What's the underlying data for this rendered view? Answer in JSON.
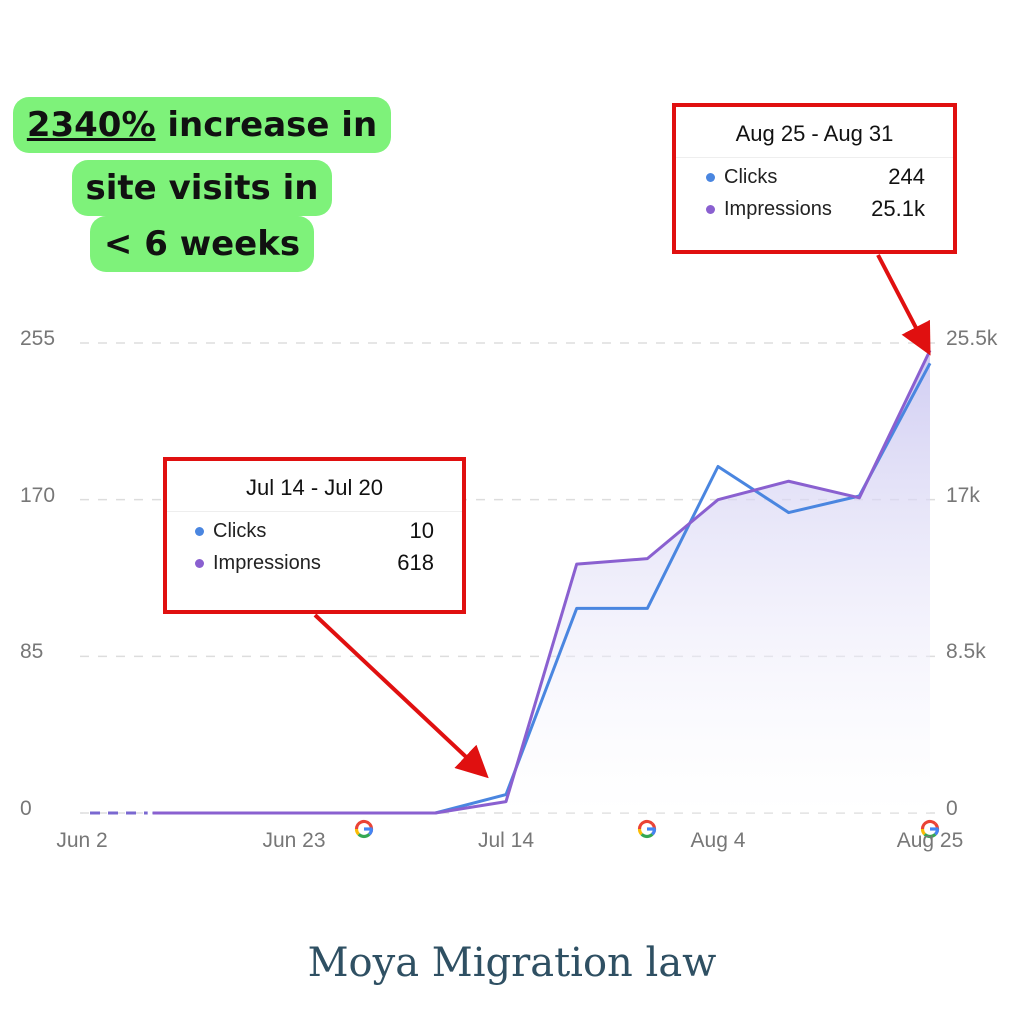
{
  "headline": {
    "highlight": "2340%",
    "line1_rest": " increase in",
    "line2": "site visits in",
    "line3": "< 6 weeks"
  },
  "callouts": [
    {
      "title": "Jul 14 - Jul 20",
      "rows": [
        {
          "label": "Clicks",
          "value": "10"
        },
        {
          "label": "Impressions",
          "value": "618"
        }
      ]
    },
    {
      "title": "Aug 25 - Aug 31",
      "rows": [
        {
          "label": "Clicks",
          "value": "244"
        },
        {
          "label": "Impressions",
          "value": "25.1k"
        }
      ]
    }
  ],
  "footer": "Moya Migration law",
  "colors": {
    "clicks": "#4a86e0",
    "impressions": "#8a60d0",
    "highlight": "#7ef27a",
    "callout_border": "#e01010"
  },
  "chart_data": {
    "type": "line",
    "x": [
      "Jun 2",
      "Jun 9",
      "Jun 16",
      "Jun 23",
      "Jun 30",
      "Jul 7",
      "Jul 14",
      "Jul 21",
      "Jul 28",
      "Aug 4",
      "Aug 11",
      "Aug 18",
      "Aug 25"
    ],
    "x_tick_labels": [
      "Jun 2",
      "Jun 23",
      "Jul 14",
      "Aug 4",
      "Aug 25"
    ],
    "y_left_ticks": [
      "0",
      "85",
      "170",
      "255"
    ],
    "y_right_ticks": [
      "0",
      "8.5k",
      "17k",
      "25.5k"
    ],
    "ylim_left": [
      0,
      255
    ],
    "ylim_right": [
      0,
      25500
    ],
    "grid": true,
    "series": [
      {
        "name": "Clicks",
        "axis": "left",
        "values": [
          0,
          0,
          0,
          0,
          0,
          0,
          10,
          111,
          111,
          188,
          163,
          172,
          244
        ]
      },
      {
        "name": "Impressions",
        "axis": "right",
        "values": [
          0,
          0,
          0,
          0,
          0,
          0,
          618,
          13500,
          13800,
          17000,
          18000,
          17100,
          25100
        ]
      }
    ],
    "markers": [
      "google-icon",
      "google-icon",
      "google-icon"
    ]
  }
}
